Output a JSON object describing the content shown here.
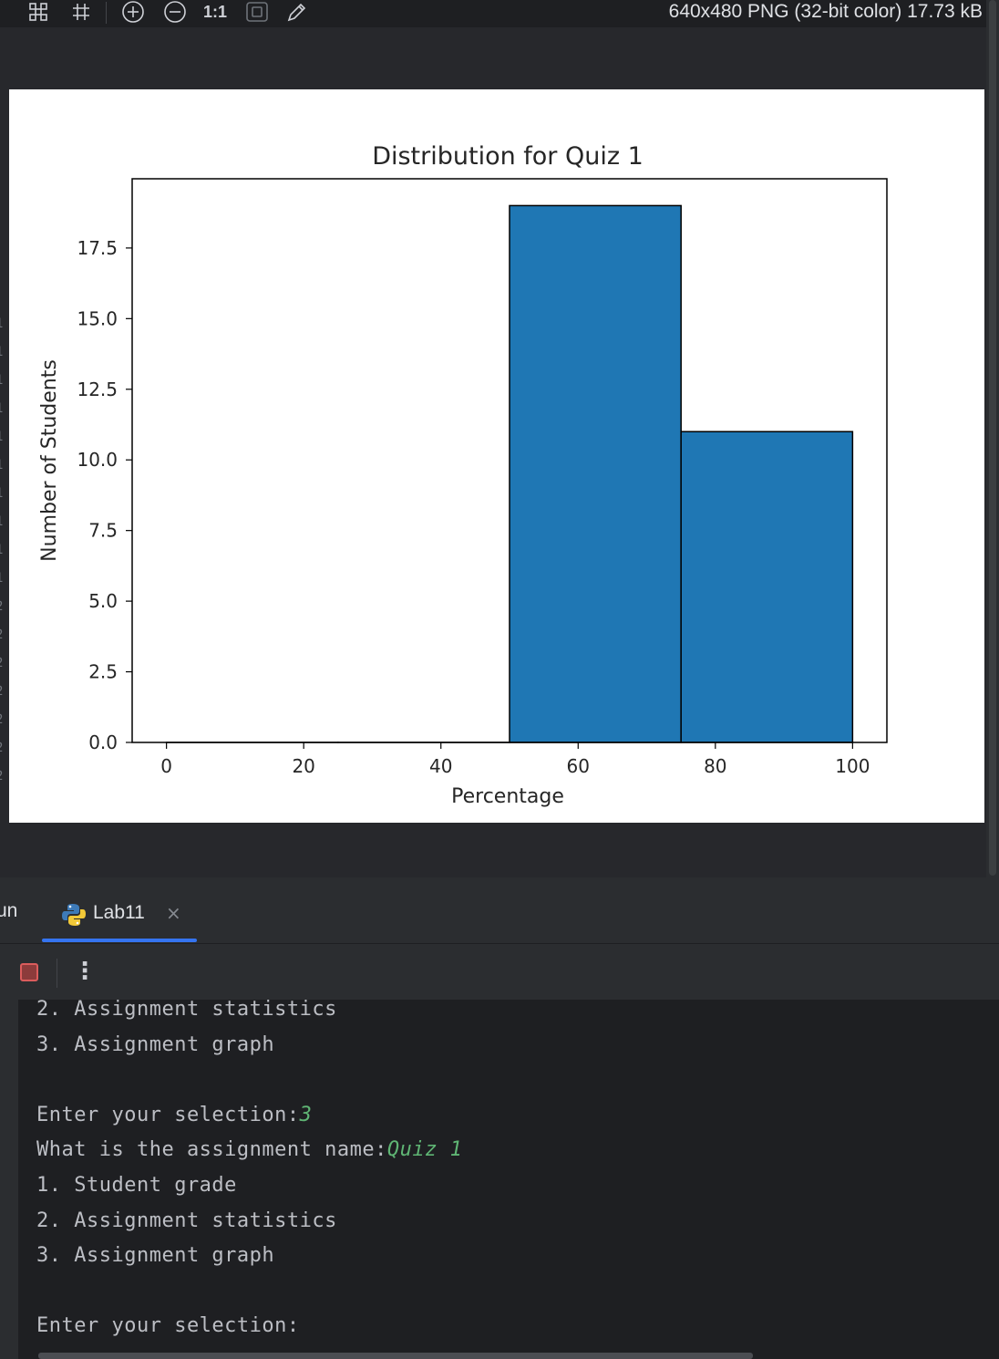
{
  "toolbar": {
    "icons": [
      "grid-icon",
      "hash-grid-icon",
      "zoom-in-icon",
      "zoom-out-icon",
      "actual-size-icon",
      "fit-icon",
      "eyedropper-icon"
    ],
    "actual_size_label": "1:1",
    "image_info": "640x480 PNG (32-bit color) 17.73 kB"
  },
  "gutter_digits": [
    "1",
    "1",
    "1",
    "1",
    "1",
    "1",
    "1",
    "1",
    "1",
    "1",
    "2",
    "2",
    "2",
    "2",
    "2",
    "2",
    "2"
  ],
  "run_panel": {
    "label": "un",
    "tab_label": "Lab11",
    "tab_icon": "python-icon",
    "close_glyph": "×",
    "more_glyph": "⋮"
  },
  "console": {
    "lines": [
      {
        "prompt": "2. Assignment statistics",
        "input": ""
      },
      {
        "prompt": "3. Assignment graph",
        "input": ""
      },
      {
        "prompt": "",
        "input": ""
      },
      {
        "prompt": "Enter your selection:",
        "input": "3"
      },
      {
        "prompt": "What is the assignment name:",
        "input": "Quiz 1"
      },
      {
        "prompt": "1. Student grade",
        "input": ""
      },
      {
        "prompt": "2. Assignment statistics",
        "input": ""
      },
      {
        "prompt": "3. Assignment graph",
        "input": ""
      },
      {
        "prompt": "",
        "input": ""
      },
      {
        "prompt": "Enter your selection:",
        "input": ""
      }
    ]
  },
  "chart_data": {
    "type": "bar",
    "title": "Distribution for Quiz 1",
    "xlabel": "Percentage",
    "ylabel": "Number of Students",
    "bins": [
      [
        0,
        25
      ],
      [
        25,
        50
      ],
      [
        50,
        75
      ],
      [
        75,
        100
      ]
    ],
    "values": [
      0,
      0,
      19,
      11
    ],
    "xlim": [
      -5,
      105
    ],
    "ylim": [
      0,
      19.95
    ],
    "xticks": [
      0,
      20,
      40,
      60,
      80,
      100
    ],
    "xtick_labels": [
      "0",
      "20",
      "40",
      "60",
      "80",
      "100"
    ],
    "yticks": [
      0,
      2.5,
      5,
      7.5,
      10,
      12.5,
      15,
      17.5
    ],
    "ytick_labels": [
      "0.0",
      "2.5",
      "5.0",
      "7.5",
      "10.0",
      "12.5",
      "15.0",
      "17.5"
    ],
    "bar_color": "#1f77b4",
    "edge_color": "#000000",
    "grid": false,
    "legend": "none"
  }
}
